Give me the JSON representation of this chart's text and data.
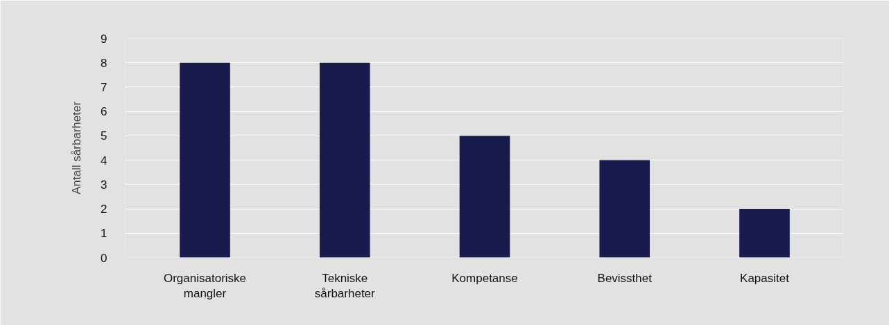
{
  "chart_data": {
    "type": "bar",
    "ylabel": "Antall sårbarheter",
    "categories": [
      "Organisatoriske\nmangler",
      "Tekniske\nsårbarheter",
      "Kompetanse",
      "Bevissthet",
      "Kapasitet"
    ],
    "values": [
      8,
      8,
      5,
      4,
      2
    ],
    "color": "#1a1b4d",
    "ylim": [
      0,
      9
    ],
    "yticks": [
      0,
      1,
      2,
      3,
      4,
      5,
      6,
      7,
      8,
      9
    ],
    "grid": "y"
  }
}
